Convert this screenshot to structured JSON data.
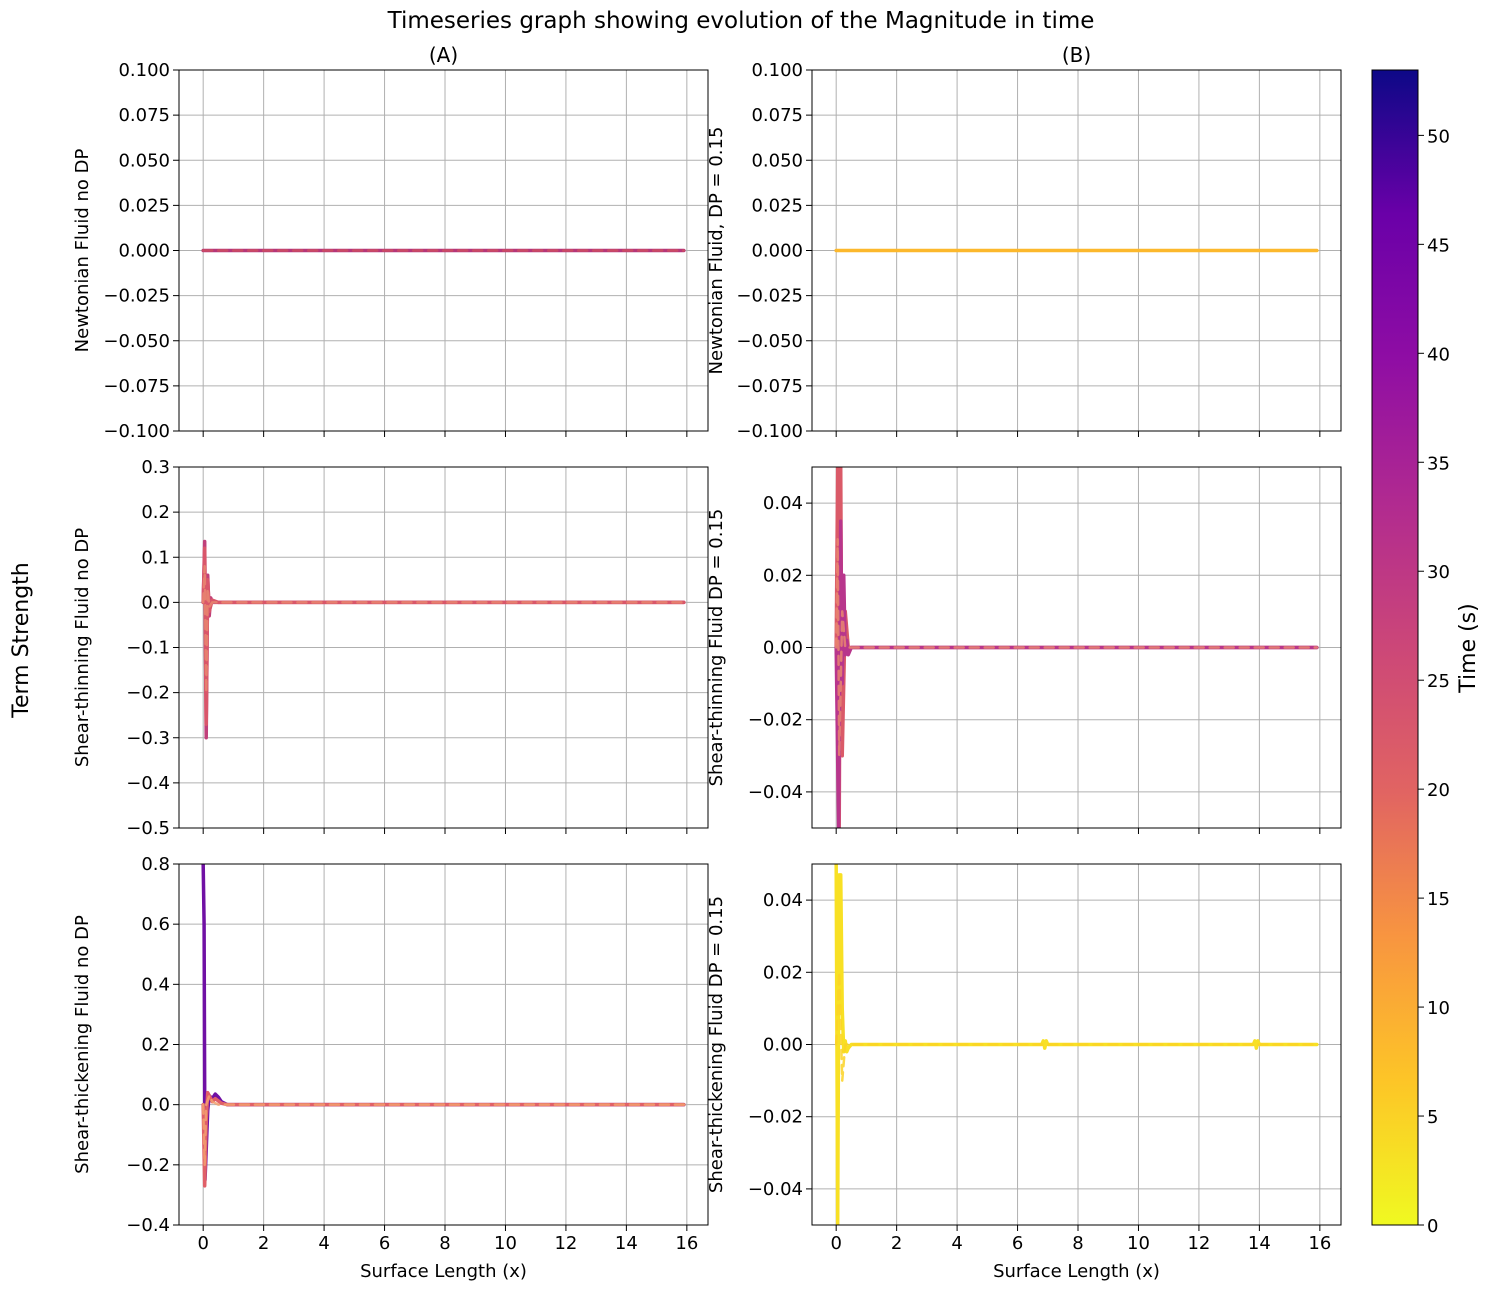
{
  "title": "Timeseries graph showing evolution of the Magnitude in time",
  "shared_ylabel": "Term Strength",
  "colorbar": {
    "label": "Time (s)",
    "colormap": "plasma_r",
    "range": [
      0,
      53
    ],
    "ticks": [
      "0",
      "5",
      "10",
      "15",
      "20",
      "25",
      "30",
      "35",
      "40",
      "45",
      "50"
    ]
  },
  "chart_data": [
    {
      "type": "line",
      "column_title": "(A)",
      "ylabel": "Newtonian Fluid no DP",
      "xlabel": "",
      "xlim": [
        -0.8,
        16.7
      ],
      "ylim": [
        -0.1,
        0.1
      ],
      "xticks": [
        0,
        2,
        4,
        6,
        8,
        10,
        12,
        14,
        16
      ],
      "yticks": [
        "−0.100",
        "−0.075",
        "−0.050",
        "−0.025",
        "0.000",
        "0.025",
        "0.050",
        "0.075",
        "0.100"
      ],
      "grid": true,
      "series": [
        {
          "color": "#b5367a",
          "dashed": false,
          "x": [
            0,
            15.9
          ],
          "y": [
            0,
            0
          ]
        },
        {
          "color": "#ce4e62",
          "dashed": true,
          "x": [
            0,
            15.9
          ],
          "y": [
            0,
            0
          ]
        }
      ]
    },
    {
      "type": "line",
      "column_title": "(B)",
      "ylabel": "Newtonian Fluid, DP = 0.15",
      "xlabel": "",
      "xlim": [
        -0.8,
        16.7
      ],
      "ylim": [
        -0.1,
        0.1
      ],
      "xticks": [
        0,
        2,
        4,
        6,
        8,
        10,
        12,
        14,
        16
      ],
      "yticks": [
        "−0.100",
        "−0.075",
        "−0.050",
        "−0.025",
        "0.000",
        "0.025",
        "0.050",
        "0.075",
        "0.100"
      ],
      "grid": true,
      "series": [
        {
          "color": "#fcb82c",
          "dashed": false,
          "x": [
            0,
            15.9
          ],
          "y": [
            0,
            0
          ]
        }
      ]
    },
    {
      "type": "line",
      "column_title": "",
      "ylabel": "Shear-thinning Fluid no DP",
      "xlabel": "",
      "xlim": [
        -0.8,
        16.7
      ],
      "ylim": [
        -0.5,
        0.3
      ],
      "xticks": [
        0,
        2,
        4,
        6,
        8,
        10,
        12,
        14,
        16
      ],
      "yticks": [
        "−0.5",
        "−0.4",
        "−0.3",
        "−0.2",
        "−0.1",
        "0.0",
        "0.1",
        "0.2",
        "0.3"
      ],
      "grid": true,
      "series": [
        {
          "color": "#c0407a",
          "dashed": false,
          "x": [
            0,
            0.05,
            0.1,
            0.15,
            0.2,
            0.25,
            0.3,
            0.4,
            0.6,
            15.9
          ],
          "y": [
            0,
            0.135,
            -0.3,
            0.06,
            -0.03,
            0.01,
            0,
            0,
            0,
            0
          ]
        },
        {
          "color": "#d9566a",
          "dashed": false,
          "x": [
            0,
            0.05,
            0.1,
            0.15,
            0.2,
            0.3,
            0.5,
            15.9
          ],
          "y": [
            0,
            0.12,
            -0.27,
            0.05,
            -0.02,
            0.005,
            0,
            0
          ]
        },
        {
          "color": "#e88670",
          "dashed": true,
          "x": [
            0,
            0.05,
            0.1,
            0.15,
            0.2,
            0.3,
            15.9
          ],
          "y": [
            0,
            0.08,
            -0.2,
            0.03,
            -0.01,
            0,
            0
          ]
        }
      ]
    },
    {
      "type": "line",
      "column_title": "",
      "ylabel": "Shear-thinning Fluid DP = 0.15",
      "xlabel": "",
      "xlim": [
        -0.8,
        16.7
      ],
      "ylim": [
        -0.05,
        0.05
      ],
      "xticks": [
        0,
        2,
        4,
        6,
        8,
        10,
        12,
        14,
        16
      ],
      "yticks": [
        "−0.04",
        "−0.02",
        "0.00",
        "0.02",
        "0.04"
      ],
      "grid": true,
      "series": [
        {
          "color": "#da5a68",
          "dashed": false,
          "x": [
            0,
            0.05,
            0.1,
            0.15,
            0.2,
            0.3,
            0.4,
            0.6,
            15.9
          ],
          "y": [
            0,
            0.05,
            -0.05,
            0.05,
            -0.03,
            0.01,
            0,
            0,
            0
          ]
        },
        {
          "color": "#b8368c",
          "dashed": false,
          "x": [
            0,
            0.08,
            0.15,
            0.2,
            0.25,
            0.3,
            0.35,
            0.4,
            0.5,
            0.7,
            15.9
          ],
          "y": [
            0,
            -0.05,
            0.035,
            -0.01,
            0.02,
            -0.002,
            0.002,
            -0.002,
            0,
            0,
            0
          ]
        },
        {
          "color": "#e88670",
          "dashed": true,
          "x": [
            0,
            0.05,
            0.1,
            0.2,
            0.3,
            15.9
          ],
          "y": [
            0,
            0.03,
            -0.03,
            0.01,
            0,
            0
          ]
        }
      ]
    },
    {
      "type": "line",
      "column_title": "",
      "ylabel": "Shear-thickening Fluid no DP",
      "xlabel": "Surface Length (x)",
      "xlim": [
        -0.8,
        16.7
      ],
      "ylim": [
        -0.4,
        0.8
      ],
      "xticks": [
        0,
        2,
        4,
        6,
        8,
        10,
        12,
        14,
        16
      ],
      "yticks": [
        "−0.4",
        "−0.2",
        "0.0",
        "0.2",
        "0.4",
        "0.6",
        "0.8"
      ],
      "grid": true,
      "series": [
        {
          "color": "#7010a4",
          "dashed": false,
          "x": [
            0,
            0.03,
            0.06,
            0.1,
            0.15,
            0.2,
            0.3,
            0.4,
            0.5,
            0.6,
            0.8,
            1.0,
            15.9
          ],
          "y": [
            0.8,
            0.6,
            -0.25,
            -0.15,
            -0.02,
            0.03,
            0.02,
            0.035,
            0.025,
            0.01,
            0,
            0,
            0
          ]
        },
        {
          "color": "#e06068",
          "dashed": false,
          "x": [
            0,
            0.05,
            0.1,
            0.15,
            0.2,
            0.3,
            0.4,
            0.6,
            0.8,
            15.9
          ],
          "y": [
            0,
            -0.27,
            -0.05,
            0.04,
            0.03,
            0.01,
            0.02,
            0.005,
            0,
            0
          ]
        },
        {
          "color": "#f2a070",
          "dashed": true,
          "x": [
            0,
            0.05,
            0.1,
            0.2,
            0.3,
            0.5,
            15.9
          ],
          "y": [
            0,
            -0.2,
            0.0,
            0.03,
            0.01,
            0,
            0
          ]
        }
      ]
    },
    {
      "type": "line",
      "column_title": "",
      "ylabel": "Shear-thickening Fluid DP = 0.15",
      "xlabel": "Surface Length (x)",
      "xlim": [
        -0.8,
        16.7
      ],
      "ylim": [
        -0.05,
        0.05
      ],
      "xticks": [
        0,
        2,
        4,
        6,
        8,
        10,
        12,
        14,
        16
      ],
      "yticks": [
        "−0.04",
        "−0.02",
        "0.00",
        "0.02",
        "0.04"
      ],
      "grid": true,
      "series": [
        {
          "color": "#f8e024",
          "dashed": false,
          "x": [
            0,
            0.05,
            0.1,
            0.15,
            0.2,
            0.25,
            0.3,
            0.35,
            0.4,
            0.5,
            0.6,
            6.8,
            6.85,
            6.9,
            6.95,
            7.0,
            13.8,
            13.85,
            13.9,
            13.95,
            14.0,
            15.9
          ],
          "y": [
            0.05,
            -0.05,
            0.047,
            0.047,
            0.01,
            -0.002,
            0.001,
            -0.002,
            -0.001,
            0,
            0,
            0,
            0.001,
            -0.001,
            0.001,
            0,
            0,
            0.001,
            -0.001,
            0.001,
            0,
            0
          ]
        },
        {
          "color": "#fcd225",
          "dashed": true,
          "x": [
            0,
            0.1,
            0.2,
            0.3,
            15.9
          ],
          "y": [
            0,
            0.02,
            -0.01,
            0,
            0
          ]
        }
      ]
    }
  ]
}
